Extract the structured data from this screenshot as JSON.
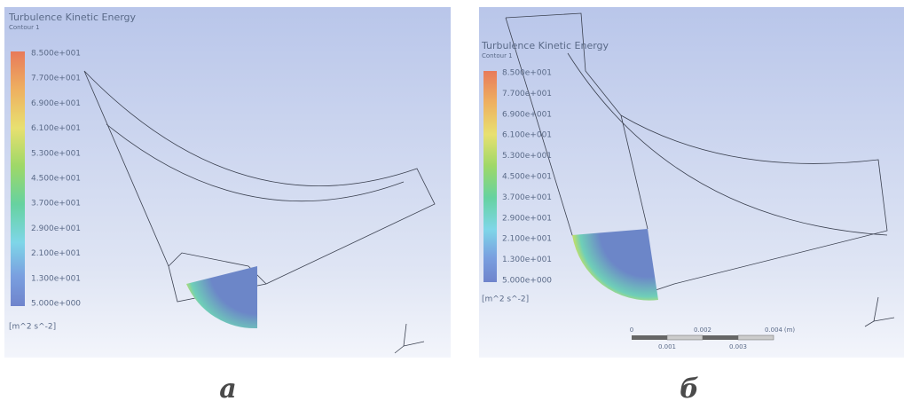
{
  "panels": [
    {
      "caption": "а",
      "legend": {
        "title": "Turbulence Kinetic Energy",
        "subtitle": "Contour 1",
        "labels": [
          "8.500e+001",
          "7.700e+001",
          "6.900e+001",
          "6.100e+001",
          "5.300e+001",
          "4.500e+001",
          "3.700e+001",
          "2.900e+001",
          "2.100e+001",
          "1.300e+001",
          "5.000e+000"
        ],
        "units": "[m^2 s^-2]"
      }
    },
    {
      "caption": "б",
      "legend": {
        "title": "Turbulence Kinetic Energy",
        "subtitle": "Contour 1",
        "labels": [
          "8.500e+001",
          "7.700e+001",
          "6.900e+001",
          "6.100e+001",
          "5.300e+001",
          "4.500e+001",
          "3.700e+001",
          "2.900e+001",
          "2.100e+001",
          "1.300e+001",
          "5.000e+000"
        ],
        "units": "[m^2 s^-2]"
      },
      "scale_bar": {
        "top_labels": [
          "0",
          "0.002",
          "0.004",
          "(m)"
        ],
        "bottom_labels": [
          "0.001",
          "0.003"
        ]
      }
    }
  ]
}
